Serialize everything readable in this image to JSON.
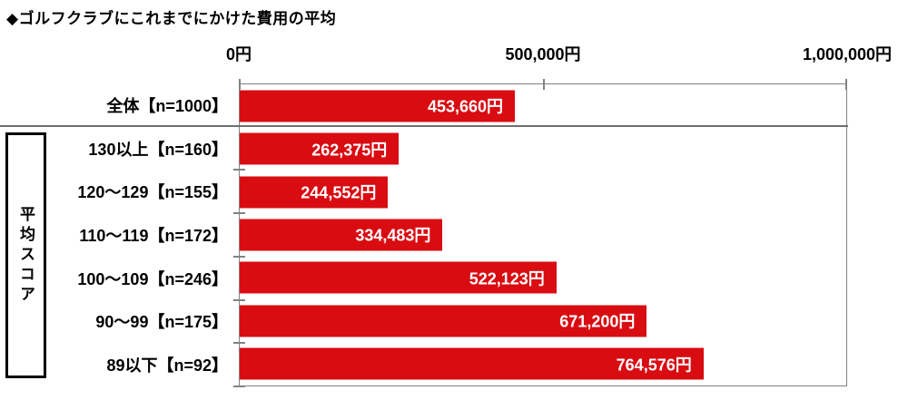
{
  "colors": {
    "bar": "#d90c12",
    "plot_border": "#828282",
    "divider": "#6e6e6e",
    "value_text": "#ffffff",
    "text": "#000000",
    "background": "#ffffff"
  },
  "group": {
    "label": "平均スコア",
    "first_row": 1,
    "last_row": 6
  },
  "chart_data": {
    "type": "bar",
    "orientation": "horizontal",
    "title": "◆ゴルフクラブにこれまでにかけた費用の平均",
    "xlabel": "",
    "ylabel": "",
    "xlim": [
      0,
      1000000
    ],
    "grid": false,
    "legend": "none",
    "x_axis": {
      "min": 0,
      "max": 1000000,
      "ticks": [
        {
          "value": 0,
          "label": "0円"
        },
        {
          "value": 500000,
          "label": "500,000円"
        },
        {
          "value": 1000000,
          "label": "1,000,000円"
        }
      ]
    },
    "rows": [
      {
        "label": "全体【n=1000】",
        "value": 453660,
        "value_label": "453,660円"
      },
      {
        "label": "130以上【n=160】",
        "value": 262375,
        "value_label": "262,375円"
      },
      {
        "label": "120～129【n=155】",
        "value": 244552,
        "value_label": "244,552円"
      },
      {
        "label": "110～119【n=172】",
        "value": 334483,
        "value_label": "334,483円"
      },
      {
        "label": "100～109【n=246】",
        "value": 522123,
        "value_label": "522,123円"
      },
      {
        "label": "90～99【n=175】",
        "value": 671200,
        "value_label": "671,200円"
      },
      {
        "label": "89以下【n=92】",
        "value": 764576,
        "value_label": "764,576円"
      }
    ]
  }
}
